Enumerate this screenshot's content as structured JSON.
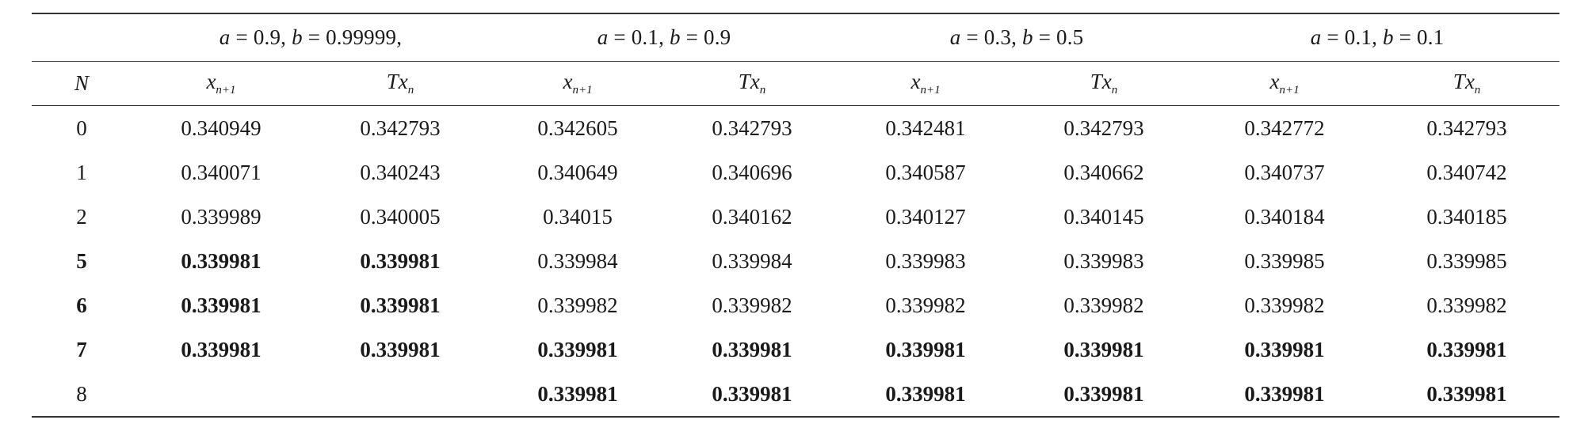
{
  "groups": [
    {
      "a_label": "a",
      "a_val": " = 0.9, ",
      "b_label": "b",
      "b_val": " = 0.99999,"
    },
    {
      "a_label": "a",
      "a_val": " = 0.1, ",
      "b_label": "b",
      "b_val": " = 0.9"
    },
    {
      "a_label": "a",
      "a_val": " = 0.3, ",
      "b_label": "b",
      "b_val": " = 0.5"
    },
    {
      "a_label": "a",
      "a_val": " = 0.1, ",
      "b_label": "b",
      "b_val": " = 0.1"
    }
  ],
  "col_n": "N",
  "col_x_base": "x",
  "col_x_sub": "n+1",
  "col_t_base": "Tx",
  "col_t_sub": "n",
  "rows": [
    {
      "n": "0",
      "bold_n": false,
      "vals": [
        "0.340949",
        "0.342793",
        "0.342605",
        "0.342793",
        "0.342481",
        "0.342793",
        "0.342772",
        "0.342793"
      ],
      "bold": [
        false,
        false,
        false,
        false,
        false,
        false,
        false,
        false
      ]
    },
    {
      "n": "1",
      "bold_n": false,
      "vals": [
        "0.340071",
        "0.340243",
        "0.340649",
        "0.340696",
        "0.340587",
        "0.340662",
        "0.340737",
        "0.340742"
      ],
      "bold": [
        false,
        false,
        false,
        false,
        false,
        false,
        false,
        false
      ]
    },
    {
      "n": "2",
      "bold_n": false,
      "vals": [
        "0.339989",
        "0.340005",
        "0.34015",
        "0.340162",
        "0.340127",
        "0.340145",
        "0.340184",
        "0.340185"
      ],
      "bold": [
        false,
        false,
        false,
        false,
        false,
        false,
        false,
        false
      ]
    },
    {
      "n": "5",
      "bold_n": true,
      "vals": [
        "0.339981",
        "0.339981",
        "0.339984",
        "0.339984",
        "0.339983",
        "0.339983",
        "0.339985",
        "0.339985"
      ],
      "bold": [
        true,
        true,
        false,
        false,
        false,
        false,
        false,
        false
      ]
    },
    {
      "n": "6",
      "bold_n": true,
      "vals": [
        "0.339981",
        "0.339981",
        "0.339982",
        "0.339982",
        "0.339982",
        "0.339982",
        "0.339982",
        "0.339982"
      ],
      "bold": [
        true,
        true,
        false,
        false,
        false,
        false,
        false,
        false
      ]
    },
    {
      "n": "7",
      "bold_n": true,
      "vals": [
        "0.339981",
        "0.339981",
        "0.339981",
        "0.339981",
        "0.339981",
        "0.339981",
        "0.339981",
        "0.339981"
      ],
      "bold": [
        true,
        true,
        true,
        true,
        true,
        true,
        true,
        true
      ]
    },
    {
      "n": "8",
      "bold_n": false,
      "vals": [
        "",
        "",
        "0.339981",
        "0.339981",
        "0.339981",
        "0.339981",
        "0.339981",
        "0.339981"
      ],
      "bold": [
        false,
        false,
        true,
        true,
        true,
        true,
        true,
        true
      ]
    }
  ]
}
